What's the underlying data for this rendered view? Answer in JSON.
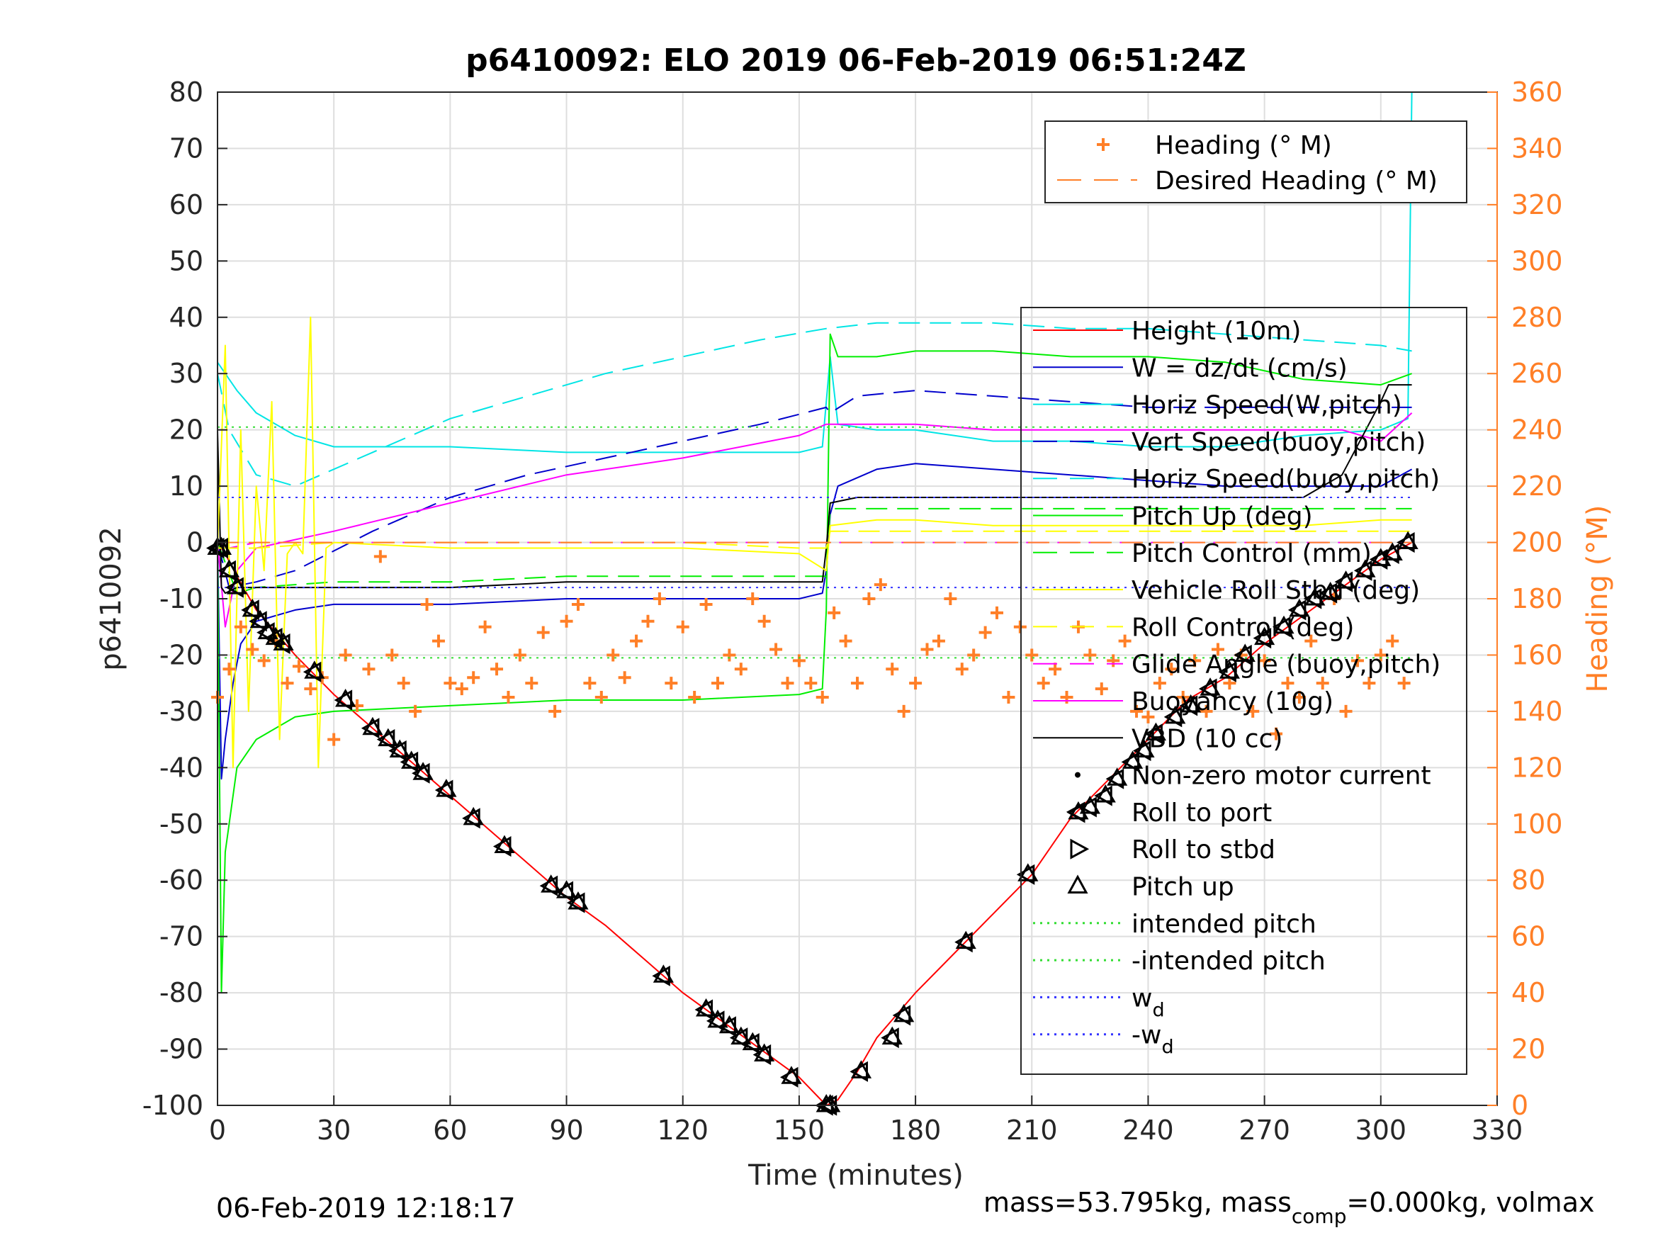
{
  "chart_data": {
    "type": "line",
    "title": "p6410092: ELO 2019 06-Feb-2019 06:51:24Z",
    "xlabel": "Time (minutes)",
    "ylabel": "p6410092",
    "ylabel_right": "Heading (°M)",
    "xlim": [
      0,
      330
    ],
    "ylim": [
      -100,
      80
    ],
    "ylim_right": [
      0,
      360
    ],
    "x_ticks": [
      "0",
      "30",
      "60",
      "90",
      "120",
      "150",
      "180",
      "210",
      "240",
      "270",
      "300",
      "330"
    ],
    "y_ticks": [
      "80",
      "70",
      "60",
      "50",
      "40",
      "30",
      "20",
      "10",
      "0",
      "-10",
      "-20",
      "-30",
      "-40",
      "-50",
      "-60",
      "-70",
      "-80",
      "-90",
      "-100"
    ],
    "y_ticks_right": [
      "360",
      "340",
      "320",
      "300",
      "280",
      "260",
      "240",
      "220",
      "200",
      "180",
      "160",
      "140",
      "120",
      "100",
      "80",
      "60",
      "40",
      "20",
      "0"
    ],
    "grid": true,
    "footer_left": "06-Feb-2019 12:18:17",
    "footer_right": {
      "a": "mass=53.795kg, mass",
      "sub": "comp",
      "b": "=0.000kg, volmax"
    },
    "heading_legend": [
      {
        "label": "Heading (° M)",
        "color": "#ff7f27",
        "marker": "plus"
      },
      {
        "label": "Desired Heading (° M)",
        "color": "#ff7f27",
        "marker": "dash"
      }
    ],
    "legend": [
      {
        "label": "Height (10m)",
        "color": "#ff0000",
        "marker": "line"
      },
      {
        "label": "W = dz/dt (cm/s)",
        "color": "#0000cc",
        "marker": "line"
      },
      {
        "label": "Horiz Speed(W,pitch)",
        "color": "#00e5e5",
        "marker": "line"
      },
      {
        "label": "Vert Speed(buoy,pitch)",
        "color": "#0000cc",
        "marker": "dash"
      },
      {
        "label": "Horiz Speed(buoy,pitch)",
        "color": "#00e5e5",
        "marker": "dash"
      },
      {
        "label": "Pitch Up (deg)",
        "color": "#00ee00",
        "marker": "line"
      },
      {
        "label": "Pitch Control (mm)",
        "color": "#00ee00",
        "marker": "dash"
      },
      {
        "label": "Vehicle Roll Stbd (deg)",
        "color": "#ffff00",
        "marker": "line"
      },
      {
        "label": "Roll Control (deg)",
        "color": "#ffff00",
        "marker": "dash"
      },
      {
        "label": "Glide Angle (buoy,pitch)",
        "color": "#ff00ff",
        "marker": "dash"
      },
      {
        "label": "Buoyancy (10g)",
        "color": "#ff00ff",
        "marker": "line"
      },
      {
        "label": "VBD (10 cc)",
        "color": "#000000",
        "marker": "line"
      },
      {
        "label": "Non-zero motor current",
        "color": "#000000",
        "marker": "dot"
      },
      {
        "label": "Roll to port",
        "color": "#000000",
        "marker": "tri-left"
      },
      {
        "label": "Roll to stbd",
        "color": "#000000",
        "marker": "tri-right"
      },
      {
        "label": "Pitch up",
        "color": "#000000",
        "marker": "tri-up"
      },
      {
        "label": "intended pitch",
        "color": "#33dd33",
        "marker": "dot-line"
      },
      {
        "label": "-intended pitch",
        "color": "#33dd33",
        "marker": "dot-line"
      },
      {
        "label": "w",
        "sub": "d",
        "color": "#3333ff",
        "marker": "dot-line"
      },
      {
        "label": "-w",
        "sub": "d",
        "color": "#3333ff",
        "marker": "dot-line"
      }
    ],
    "series": [
      {
        "name": "Height (10m)",
        "color": "#ff0000",
        "style": "solid",
        "axis": "left",
        "x": [
          0,
          2,
          5,
          10,
          20,
          30,
          40,
          50,
          60,
          70,
          80,
          90,
          100,
          110,
          120,
          130,
          140,
          150,
          157,
          160,
          165,
          170,
          180,
          190,
          200,
          210,
          220,
          230,
          240,
          250,
          260,
          270,
          280,
          290,
          300,
          308
        ],
        "y": [
          0,
          -2,
          -6,
          -12,
          -20,
          -27,
          -33,
          -39,
          -45,
          -51,
          -57,
          -63,
          -68,
          -74,
          -80,
          -85,
          -90,
          -95,
          -100,
          -99,
          -94,
          -88,
          -80,
          -73,
          -66,
          -59,
          -49,
          -42,
          -35,
          -28,
          -24,
          -18,
          -13,
          -8,
          -3,
          0
        ]
      },
      {
        "name": "W = dz/dt (cm/s)",
        "color": "#0000cc",
        "style": "solid",
        "axis": "left",
        "x": [
          0,
          1,
          2,
          4,
          6,
          10,
          20,
          30,
          60,
          90,
          120,
          150,
          156,
          157,
          158,
          160,
          170,
          180,
          200,
          220,
          240,
          260,
          280,
          300,
          308
        ],
        "y": [
          0,
          -42,
          -35,
          -25,
          -18,
          -14,
          -12,
          -11,
          -11,
          -10,
          -10,
          -10,
          -9,
          -5,
          5,
          10,
          13,
          14,
          13,
          12,
          11,
          10,
          10,
          10,
          13
        ]
      },
      {
        "name": "Horiz Speed(W,pitch)",
        "color": "#00e5e5",
        "style": "solid",
        "axis": "left",
        "x": [
          0,
          2,
          5,
          10,
          20,
          30,
          60,
          90,
          120,
          150,
          156,
          158,
          160,
          170,
          180,
          200,
          220,
          240,
          260,
          280,
          300,
          307,
          308
        ],
        "y": [
          32,
          30,
          27,
          23,
          19,
          17,
          17,
          16,
          16,
          16,
          17,
          33,
          21,
          20,
          20,
          18,
          18,
          17,
          17,
          19,
          20,
          22,
          80
        ]
      },
      {
        "name": "Vert Speed(buoy,pitch)",
        "color": "#0000cc",
        "style": "dash",
        "axis": "left",
        "x": [
          0,
          3,
          10,
          20,
          40,
          60,
          80,
          100,
          120,
          140,
          157,
          158,
          165,
          180,
          200,
          220,
          240,
          260,
          280,
          300,
          308
        ],
        "y": [
          0,
          -8,
          -7,
          -5,
          2,
          8,
          12,
          15,
          18,
          21,
          24,
          23,
          26,
          27,
          26,
          25,
          24,
          24,
          24,
          24,
          24
        ]
      },
      {
        "name": "Horiz Speed(buoy,pitch)",
        "color": "#00e5e5",
        "style": "dash",
        "axis": "left",
        "x": [
          0,
          3,
          10,
          20,
          40,
          60,
          80,
          100,
          120,
          140,
          157,
          170,
          180,
          200,
          220,
          240,
          260,
          280,
          300,
          308
        ],
        "y": [
          30,
          20,
          12,
          10,
          16,
          22,
          26,
          30,
          33,
          36,
          38,
          39,
          39,
          39,
          38,
          38,
          37,
          36,
          35,
          34
        ]
      },
      {
        "name": "Pitch Up (deg)",
        "color": "#00ee00",
        "style": "solid",
        "axis": "left",
        "x": [
          0,
          1,
          2,
          5,
          10,
          20,
          30,
          60,
          90,
          120,
          150,
          156,
          157,
          158,
          160,
          170,
          180,
          200,
          220,
          240,
          260,
          280,
          300,
          308
        ],
        "y": [
          0,
          -80,
          -55,
          -40,
          -35,
          -31,
          -30,
          -29,
          -28,
          -28,
          -27,
          -26,
          -12,
          37,
          33,
          33,
          34,
          34,
          33,
          33,
          32,
          29,
          28,
          30
        ]
      },
      {
        "name": "Pitch Control (mm)",
        "color": "#00ee00",
        "style": "dash",
        "axis": "left",
        "x": [
          0,
          5,
          10,
          30,
          60,
          90,
          120,
          150,
          157,
          158,
          170,
          200,
          240,
          270,
          300,
          308
        ],
        "y": [
          0,
          -9,
          -8,
          -7,
          -7,
          -6,
          -6,
          -6,
          -6,
          6,
          6,
          6,
          6,
          6,
          6,
          6
        ]
      },
      {
        "name": "Glide Angle (buoy,pitch)",
        "color": "#ff00ff",
        "style": "dash",
        "axis": "left",
        "x": [
          0,
          3,
          10,
          60,
          120,
          157,
          158,
          200,
          260,
          308
        ],
        "y": [
          0,
          -1,
          0,
          0,
          0,
          0,
          0,
          0,
          0,
          0
        ]
      },
      {
        "name": "Buoyancy (10g)",
        "color": "#ff00ff",
        "style": "solid",
        "axis": "left",
        "x": [
          0,
          2,
          5,
          10,
          30,
          60,
          90,
          120,
          150,
          157,
          170,
          180,
          200,
          240,
          270,
          290,
          300,
          308
        ],
        "y": [
          0,
          -15,
          -5,
          -1,
          2,
          7,
          12,
          15,
          19,
          21,
          21,
          21,
          20,
          20,
          20,
          20,
          18,
          23
        ]
      },
      {
        "name": "VBD (10 cc)",
        "color": "#000000",
        "style": "solid",
        "axis": "left",
        "x": [
          0,
          1,
          2,
          5,
          10,
          30,
          60,
          90,
          120,
          150,
          156,
          157,
          158,
          165,
          180,
          200,
          240,
          260,
          280,
          290,
          300,
          302,
          308
        ],
        "y": [
          20,
          -8,
          -9,
          -8,
          -8,
          -8,
          -8,
          -7,
          -7,
          -7,
          -7,
          -1,
          7,
          8,
          8,
          8,
          8,
          8,
          8,
          12,
          25,
          28,
          28
        ]
      },
      {
        "name": "Vehicle Roll Stbd (deg)",
        "color": "#ffff00",
        "style": "solid",
        "axis": "left",
        "x": [
          0,
          2,
          4,
          6,
          8,
          10,
          12,
          14,
          16,
          18,
          20,
          22,
          24,
          26,
          28,
          30,
          60,
          90,
          120,
          150,
          157,
          158,
          170,
          180,
          200,
          220,
          240,
          260,
          280,
          300,
          308
        ],
        "y": [
          -1,
          35,
          -40,
          20,
          -30,
          10,
          -5,
          25,
          -35,
          -2,
          0,
          -2,
          40,
          -40,
          -1,
          0,
          -1,
          -1,
          -1,
          -2,
          -5,
          3,
          4,
          4,
          3,
          3,
          3,
          3,
          3,
          4,
          4
        ]
      },
      {
        "name": "Roll Control (deg)",
        "color": "#ffff00",
        "style": "dash",
        "axis": "left",
        "x": [
          0,
          5,
          10,
          30,
          60,
          90,
          120,
          150,
          157,
          158,
          180,
          210,
          240,
          270,
          300,
          308
        ],
        "y": [
          -1,
          -1,
          -1,
          0,
          0,
          0,
          0,
          -1,
          -1,
          2,
          2,
          2,
          2,
          2,
          2,
          2
        ]
      },
      {
        "name": "Heading (° M)",
        "color": "#ff7f27",
        "style": "markers",
        "axis": "right",
        "x": [
          0,
          3,
          6,
          9,
          12,
          15,
          18,
          21,
          24,
          27,
          30,
          33,
          36,
          39,
          42,
          45,
          48,
          51,
          54,
          57,
          60,
          63,
          66,
          69,
          72,
          75,
          78,
          81,
          84,
          87,
          90,
          93,
          96,
          99,
          102,
          105,
          108,
          111,
          114,
          117,
          120,
          123,
          126,
          129,
          132,
          135,
          138,
          141,
          144,
          147,
          150,
          153,
          156,
          159,
          162,
          165,
          168,
          171,
          174,
          177,
          180,
          183,
          186,
          189,
          192,
          195,
          198,
          201,
          204,
          207,
          210,
          213,
          216,
          219,
          222,
          225,
          228,
          231,
          234,
          237,
          240,
          243,
          246,
          249,
          252,
          255,
          258,
          261,
          264,
          267,
          270,
          273,
          276,
          279,
          282,
          285,
          288,
          291,
          294,
          297,
          300,
          303,
          306
        ],
        "y": [
          145,
          155,
          170,
          162,
          158,
          165,
          150,
          156,
          148,
          152,
          130,
          160,
          142,
          155,
          195,
          160,
          150,
          140,
          178,
          165,
          150,
          148,
          152,
          170,
          155,
          145,
          160,
          150,
          168,
          140,
          172,
          178,
          150,
          145,
          160,
          152,
          165,
          172,
          180,
          150,
          170,
          145,
          178,
          150,
          160,
          155,
          180,
          172,
          162,
          150,
          158,
          150,
          145,
          175,
          165,
          150,
          180,
          185,
          155,
          140,
          150,
          162,
          165,
          180,
          155,
          160,
          168,
          175,
          145,
          170,
          160,
          150,
          155,
          145,
          170,
          160,
          148,
          158,
          165,
          140,
          138,
          150,
          155,
          145,
          158,
          140,
          162,
          150,
          160,
          140,
          158,
          132,
          150,
          145,
          165,
          150,
          180,
          140,
          158,
          150,
          160,
          165,
          150
        ]
      },
      {
        "name": "Desired Heading (° M)",
        "color": "#ff7f27",
        "style": "dash",
        "axis": "right",
        "x": [
          0,
          308
        ],
        "y": [
          200,
          200
        ]
      },
      {
        "name": "intended pitch",
        "color": "#33dd33",
        "style": "dot",
        "axis": "left",
        "x": [
          0,
          308
        ],
        "y": [
          20.5,
          20.5
        ]
      },
      {
        "name": "-intended pitch",
        "color": "#33dd33",
        "style": "dot",
        "axis": "left",
        "x": [
          0,
          308
        ],
        "y": [
          -20.5,
          -20.5
        ]
      },
      {
        "name": "w_d",
        "color": "#3333ff",
        "style": "dot",
        "axis": "left",
        "x": [
          0,
          308
        ],
        "y": [
          8,
          8
        ]
      },
      {
        "name": "-w_d",
        "color": "#3333ff",
        "style": "dot",
        "axis": "left",
        "x": [
          0,
          308
        ],
        "y": [
          -8,
          -8
        ]
      }
    ],
    "markers": {
      "name": "motor events",
      "x": [
        0,
        1,
        3,
        5,
        9,
        11,
        13,
        15,
        17,
        25,
        33,
        40,
        44,
        47,
        50,
        53,
        59,
        66,
        74,
        86,
        90,
        93,
        115,
        126,
        129,
        132,
        135,
        138,
        141,
        148,
        157,
        158,
        166,
        174,
        177,
        193,
        209,
        222,
        225,
        229,
        232,
        236,
        239,
        242,
        247,
        251,
        256,
        261,
        265,
        270,
        275,
        279,
        283,
        287,
        291,
        296,
        300,
        303,
        307
      ],
      "y": [
        -1,
        -1,
        -5,
        -8,
        -12,
        -14,
        -16,
        -17,
        -18,
        -23,
        -28,
        -33,
        -35,
        -37,
        -39,
        -41,
        -44,
        -49,
        -54,
        -61,
        -62,
        -64,
        -77,
        -83,
        -85,
        -86,
        -88,
        -89,
        -91,
        -95,
        -100,
        -100,
        -94,
        -88,
        -84,
        -71,
        -59,
        -48,
        -47,
        -45,
        -42,
        -39,
        -37,
        -34,
        -31,
        -29,
        -26,
        -23,
        -20,
        -17,
        -15,
        -12,
        -10,
        -9,
        -7,
        -5,
        -3,
        -2,
        0
      ]
    }
  }
}
